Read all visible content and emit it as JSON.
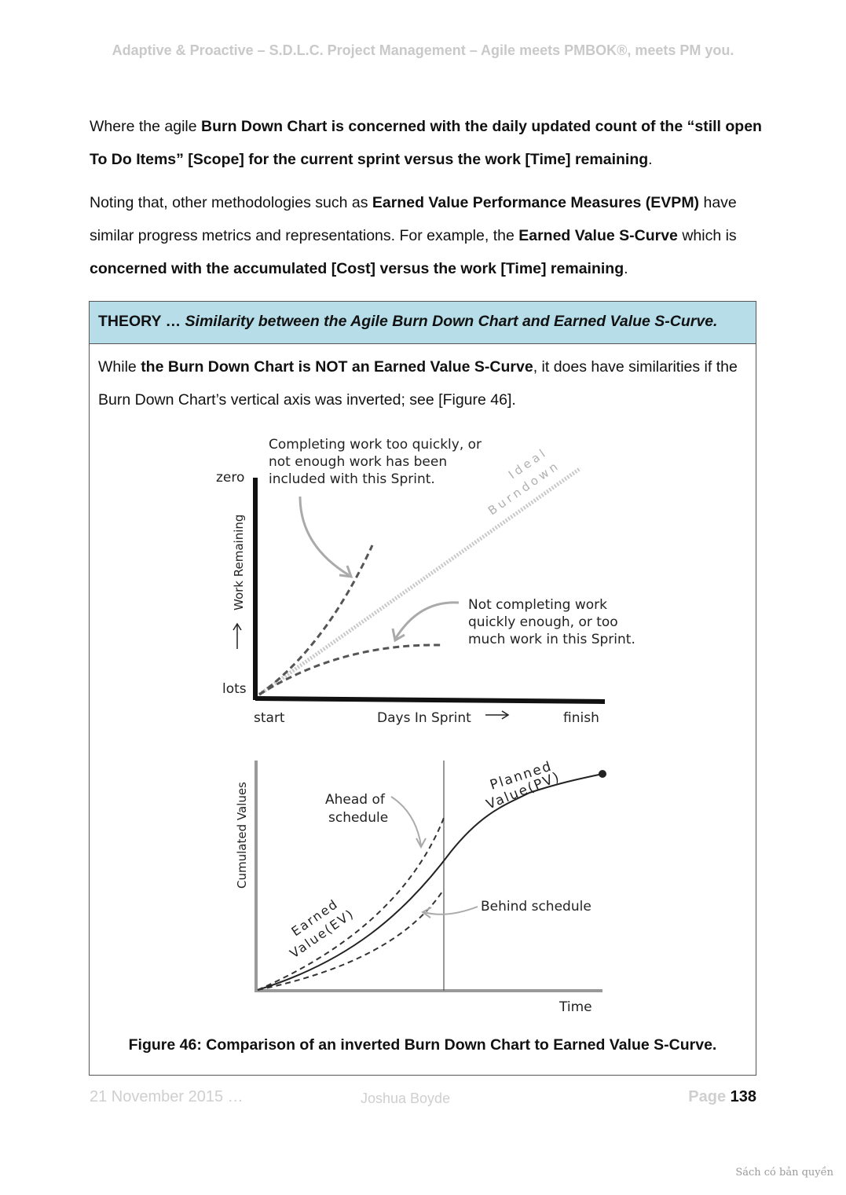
{
  "header": {
    "running_title": "Adaptive & Proactive – S.D.L.C. Project Management – Agile meets PMBOK®, meets PM you."
  },
  "paragraph1": {
    "prefix": "Where the agile ",
    "bold": "Burn Down Chart is concerned with the daily updated count of the “still open To Do Items” [Scope] for the current sprint versus the work [Time] remaining",
    "suffix": "."
  },
  "paragraph2": {
    "t1": "Noting that, other methodologies such as ",
    "b1": "Earned Value Performance Measures (EVPM)",
    "t2": " have similar progress metrics and representations.  For example, the ",
    "b2": "Earned Value S-Curve",
    "t3": " which is ",
    "b3": "concerned with the accumulated [Cost]  versus the work [Time] remaining",
    "t4": "."
  },
  "theory": {
    "label": "THEORY … ",
    "title": "Similarity between the Agile Burn Down Chart and Earned Value S-Curve.",
    "t1": "While ",
    "b1": "the Burn Down Chart is NOT an Earned Value S-Curve",
    "t2": ", it does have similarities if the Burn Down Chart’s vertical axis was inverted; see [Figure 46]."
  },
  "burndown": {
    "y_top": "zero",
    "y_bottom": "lots",
    "y_axis": "Work Remaining",
    "x_start": "start",
    "x_axis": "Days In Sprint",
    "x_end": "finish",
    "ideal": "Ideal",
    "ideal2": "Burndown",
    "note_fast_1": "Completing work too quickly, or",
    "note_fast_2": "not enough work has been",
    "note_fast_3": "included with this Sprint.",
    "note_slow_1": "Not completing work",
    "note_slow_2": "quickly enough, or too",
    "note_slow_3": "much work in this Sprint."
  },
  "scurve": {
    "y_axis": "Cumulated Values",
    "x_axis": "Time",
    "pv_1": "Planned",
    "pv_2": "Value(PV)",
    "ev_1": "Earned",
    "ev_2": "Value(EV)",
    "ahead_1": "Ahead of",
    "ahead_2": "schedule",
    "behind": "Behind schedule"
  },
  "figure": {
    "caption": "Figure 46: Comparison of an inverted Burn Down Chart to Earned Value S-Curve."
  },
  "footer": {
    "date": "21 November 2015 …",
    "author": "Joshua Boyde",
    "page_label": "Page ",
    "page_number": "138"
  },
  "watermark": "Sách có bản quyền"
}
